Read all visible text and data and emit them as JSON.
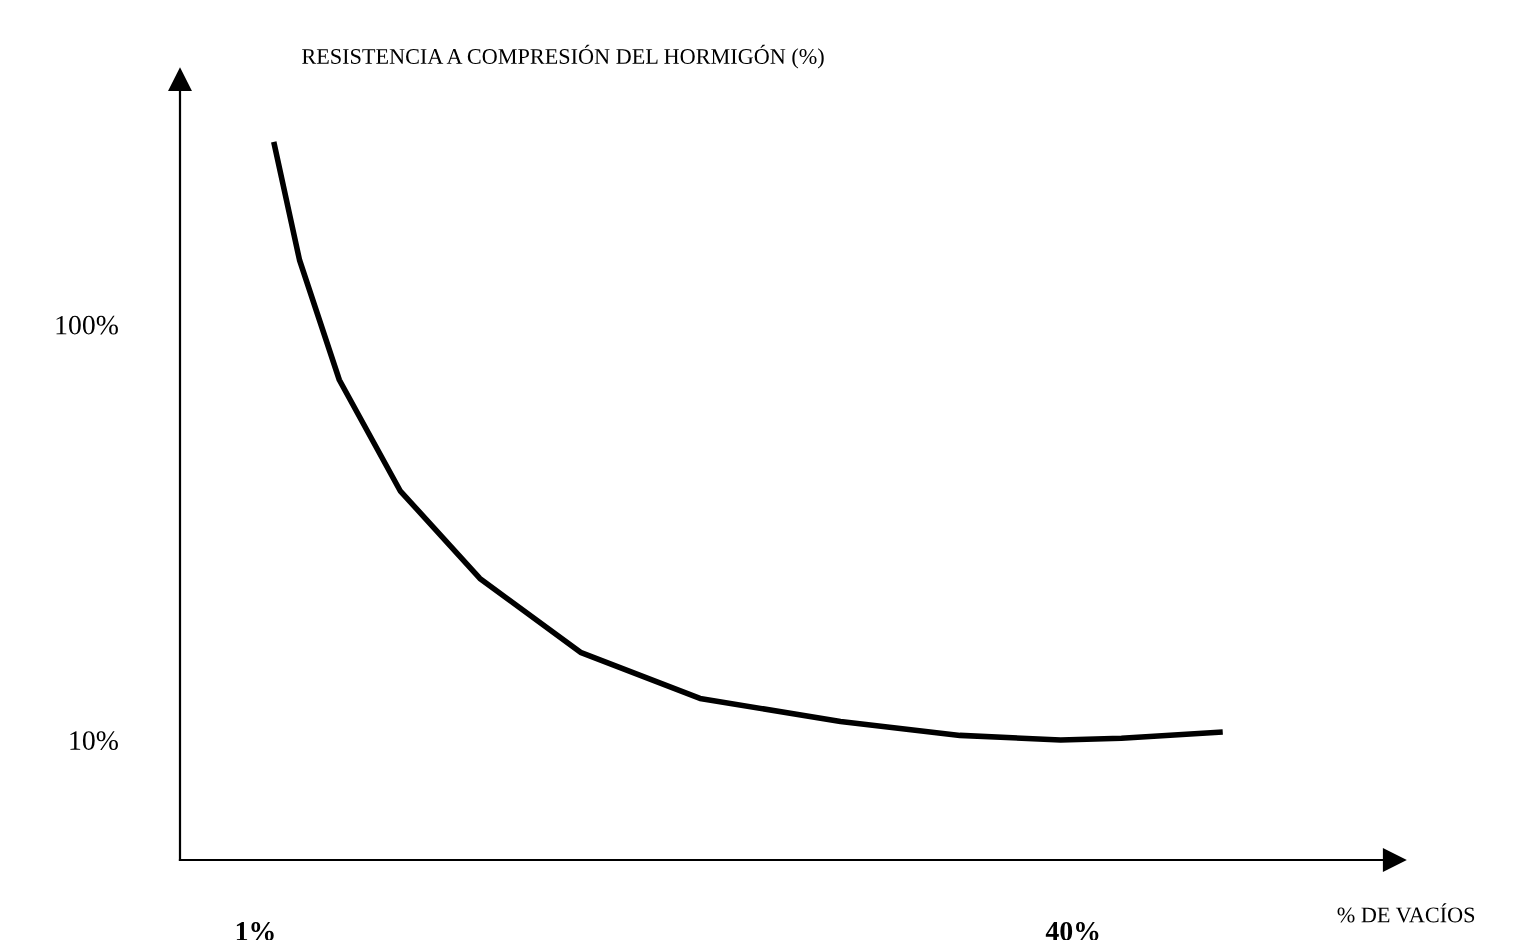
{
  "chart_data": {
    "type": "line",
    "xlabel": "% DE VACÍOS",
    "ylabel": "RESISTENCIA A COMPRESIÓN DEL HORMIGÓN (%)",
    "x": [
      1.9,
      3.1,
      5.0,
      7.9,
      11.7,
      16.5,
      22.2,
      28.9,
      34.6,
      39.4,
      42.3,
      47.0
    ],
    "series": [
      {
        "color": "#000000",
        "values": [
          139,
          114,
          88,
          64,
          45,
          29,
          19,
          14,
          11,
          10,
          10.4,
          11.7
        ]
      }
    ],
    "xlim": [
      -2.6,
      55.3
    ],
    "ylim": [
      -16,
      153
    ],
    "xticks": [
      {
        "value": 1,
        "label": "1%"
      },
      {
        "value": 40,
        "label": "40%"
      }
    ],
    "yticks": [
      {
        "value": 10,
        "label": "10%"
      },
      {
        "value": 100,
        "label": "100%"
      }
    ],
    "grid": false,
    "legend": false,
    "marker": "none",
    "line_style": "solid"
  }
}
